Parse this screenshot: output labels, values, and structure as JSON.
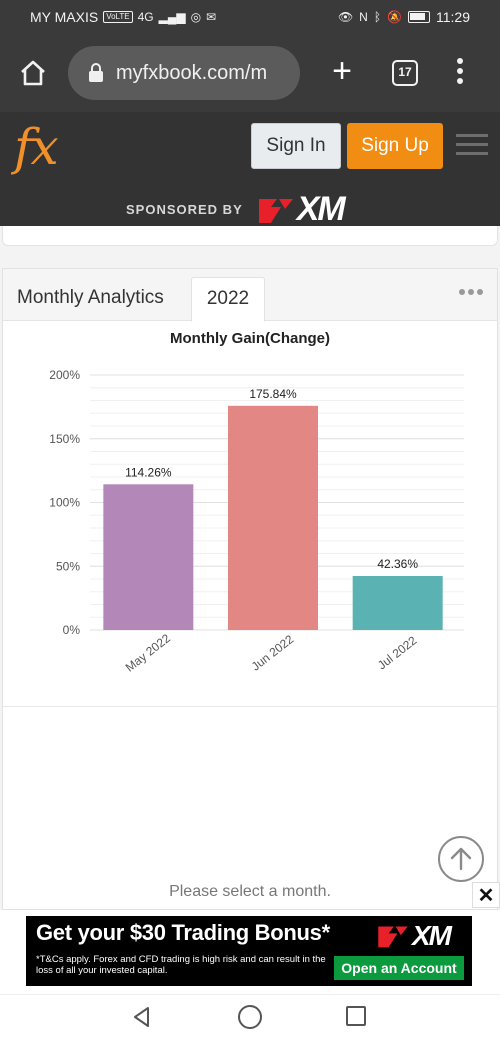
{
  "status_bar": {
    "carrier": "MY MAXIS",
    "volte": "VoLTE",
    "network": "4G",
    "nfc": "N",
    "time": "11:29"
  },
  "browser": {
    "url": "myfxbook.com/m",
    "tab_count": "17"
  },
  "site_header": {
    "logo": "fx",
    "signin_label": "Sign In",
    "signup_label": "Sign Up",
    "sponsored_label": "SPONSORED BY",
    "sponsor_brand": "XM"
  },
  "panel": {
    "title": "Monthly Analytics",
    "tab": "2022"
  },
  "chart_data": {
    "type": "bar",
    "title": "Monthly Gain(Change)",
    "categories": [
      "May 2022",
      "Jun 2022",
      "Jul 2022"
    ],
    "values": [
      114.26,
      175.84,
      42.36
    ],
    "data_labels": [
      "114.26%",
      "175.84%",
      "42.36%"
    ],
    "colors": [
      "#b388b8",
      "#e38785",
      "#5ab3b2"
    ],
    "ylim": [
      0,
      200
    ],
    "yticks": [
      0,
      50,
      100,
      150,
      200
    ],
    "ytick_labels": [
      "0%",
      "50%",
      "100%",
      "150%",
      "200%"
    ],
    "grid": true
  },
  "select_message": "Please select a month.",
  "ad": {
    "headline": "Get your $30 Trading Bonus*",
    "fine_print": "*T&Cs apply. Forex and CFD trading is high risk and can result in the loss of all your invested capital.",
    "brand": "XM",
    "cta": "Open an Account"
  },
  "colors": {
    "accent_orange": "#f28d14",
    "header_dark": "#333333",
    "cta_green": "#0c9a3e"
  }
}
